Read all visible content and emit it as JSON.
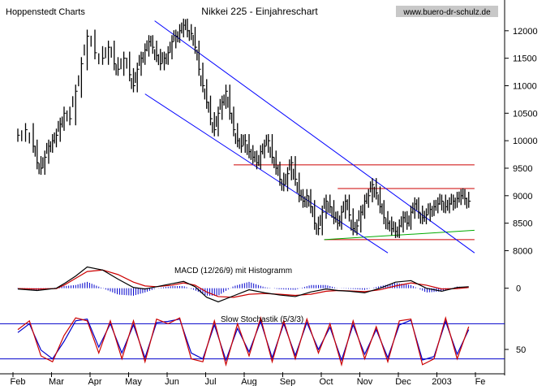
{
  "chart_data": {
    "type": "line",
    "title": "Nikkei 225 - Einjahreschart",
    "source_label": "Hoppenstedt Charts",
    "watermark": "www.buero-dr-schulz.de",
    "x_ticks": [
      "Feb",
      "Mar",
      "Apr",
      "May",
      "Jun",
      "Jul",
      "Aug",
      "Sep",
      "Oct",
      "Nov",
      "Dec",
      "2003",
      "Fe"
    ],
    "main_panel": {
      "ylim": [
        7800,
        12500
      ],
      "y_ticks": [
        8000,
        8500,
        9000,
        9500,
        10000,
        10500,
        11000,
        11500,
        12000
      ],
      "price_series": {
        "x": [
          0,
          0.2,
          0.4,
          0.5,
          0.6,
          0.7,
          0.8,
          0.9,
          1.0,
          1.1,
          1.2,
          1.35,
          1.5,
          1.65,
          1.8,
          2.0,
          2.2,
          2.35,
          2.5,
          2.6,
          2.75,
          2.9,
          3.0,
          3.1,
          3.2,
          3.3,
          3.4,
          3.5,
          3.6,
          3.7,
          3.8,
          3.9,
          4.0,
          4.1,
          4.2,
          4.3,
          4.4,
          4.5,
          4.6,
          4.7,
          4.8,
          4.9,
          5.0,
          5.1,
          5.2,
          5.3,
          5.4,
          5.5,
          5.6,
          5.7,
          5.8,
          5.9,
          6.0,
          6.1,
          6.2,
          6.3,
          6.4,
          6.5,
          6.6,
          6.7,
          6.8,
          6.9,
          7.0,
          7.1,
          7.2,
          7.3,
          7.4,
          7.5,
          7.6,
          7.7,
          7.8,
          7.9,
          8.0,
          8.1,
          8.2,
          8.3,
          8.4,
          8.5,
          8.6,
          8.7,
          8.8,
          8.9,
          9.0,
          9.1,
          9.2,
          9.3,
          9.4,
          9.5,
          9.6,
          9.7,
          9.8,
          9.9,
          10.0,
          10.1,
          10.2,
          10.3,
          10.4,
          10.5,
          10.6,
          10.7,
          10.8,
          10.9,
          11.0,
          11.1,
          11.2,
          11.3,
          11.4,
          11.5,
          11.6,
          11.7
        ],
        "y": [
          10100,
          10200,
          9900,
          9600,
          9500,
          9700,
          9900,
          10000,
          10100,
          10300,
          10500,
          10400,
          10900,
          11400,
          11900,
          11600,
          11500,
          11700,
          11400,
          11300,
          11500,
          11200,
          11000,
          11300,
          11500,
          11650,
          11800,
          11700,
          11550,
          11400,
          11500,
          11600,
          11800,
          11900,
          12000,
          12100,
          12000,
          11950,
          11700,
          11300,
          11000,
          10700,
          10400,
          10200,
          10500,
          10700,
          10900,
          10500,
          10200,
          10000,
          9900,
          10000,
          9800,
          9700,
          9600,
          9800,
          9900,
          10000,
          9700,
          9500,
          9300,
          9200,
          9400,
          9600,
          9300,
          9000,
          8900,
          9000,
          8800,
          8500,
          8400,
          8700,
          8900,
          8800,
          8600,
          8500,
          8700,
          8900,
          8650,
          8400,
          8450,
          8700,
          8900,
          9000,
          9200,
          9050,
          8800,
          8600,
          8500,
          8400,
          8350,
          8450,
          8600,
          8500,
          8700,
          8850,
          8700,
          8600,
          8650,
          8750,
          8800,
          8850,
          8900,
          8800,
          8850,
          8900,
          8950,
          9000,
          8950,
          8900
        ]
      },
      "trend_channel": {
        "upper": {
          "x": [
            3.55,
            11.85
          ],
          "y": [
            12180,
            7960
          ]
        },
        "lower": {
          "x": [
            3.3,
            9.6
          ],
          "y": [
            10850,
            7960
          ]
        }
      },
      "horizontal_lines": [
        {
          "y": 9560,
          "x": [
            5.6,
            11.85
          ],
          "color": "#cc0000"
        },
        {
          "y": 9130,
          "x": [
            8.3,
            11.85
          ],
          "color": "#cc0000"
        },
        {
          "y": 8200,
          "x": [
            7.95,
            11.85
          ],
          "color": "#cc0000"
        }
      ],
      "support_line": {
        "x": [
          7.95,
          11.85
        ],
        "y": [
          8200,
          8370
        ],
        "color": "#00aa00"
      }
    },
    "macd_panel": {
      "label": "MACD (12/26/9) mit Histogramm",
      "y_ticks": [
        0
      ],
      "ylim": [
        -250,
        350
      ],
      "x": [
        0,
        0.5,
        1.0,
        1.2,
        1.5,
        1.8,
        2.2,
        2.6,
        3.0,
        3.3,
        3.6,
        4.0,
        4.3,
        4.6,
        4.9,
        5.2,
        5.6,
        6.0,
        6.4,
        6.8,
        7.2,
        7.6,
        8.0,
        8.3,
        8.6,
        9.0,
        9.4,
        9.8,
        10.2,
        10.6,
        11.0,
        11.4,
        11.7
      ],
      "macd": [
        -10,
        -30,
        0,
        60,
        160,
        280,
        240,
        120,
        10,
        -10,
        20,
        60,
        90,
        20,
        -120,
        -180,
        -100,
        -20,
        -60,
        -90,
        -110,
        -50,
        -10,
        -30,
        -40,
        -60,
        0,
        80,
        100,
        0,
        -40,
        10,
        20
      ],
      "signal": [
        -5,
        -10,
        -5,
        40,
        130,
        220,
        240,
        180,
        80,
        30,
        20,
        40,
        70,
        40,
        -50,
        -110,
        -120,
        -80,
        -70,
        -80,
        -95,
        -80,
        -40,
        -30,
        -35,
        -45,
        -20,
        30,
        70,
        40,
        -10,
        -5,
        10
      ],
      "histogram_colors": {
        "positive": "#0000cc",
        "negative": "#0000cc"
      }
    },
    "stoch_panel": {
      "label": "Slow Stochastik (5/3/3)",
      "y_ticks": [
        50
      ],
      "ylim": [
        0,
        100
      ],
      "ref_lines": [
        80,
        20
      ],
      "x": [
        0,
        0.3,
        0.6,
        0.9,
        1.2,
        1.5,
        1.8,
        2.1,
        2.4,
        2.7,
        3.0,
        3.3,
        3.6,
        3.9,
        4.2,
        4.5,
        4.8,
        5.1,
        5.4,
        5.7,
        6.0,
        6.3,
        6.6,
        6.9,
        7.2,
        7.5,
        7.8,
        8.1,
        8.4,
        8.7,
        9.0,
        9.3,
        9.6,
        9.9,
        10.2,
        10.5,
        10.8,
        11.1,
        11.4,
        11.7
      ],
      "k": [
        70,
        85,
        25,
        15,
        60,
        90,
        85,
        30,
        85,
        20,
        85,
        15,
        88,
        80,
        90,
        20,
        15,
        85,
        10,
        80,
        25,
        90,
        15,
        85,
        20,
        88,
        30,
        80,
        10,
        85,
        20,
        75,
        15,
        85,
        88,
        10,
        20,
        90,
        20,
        75
      ],
      "d": [
        65,
        80,
        35,
        20,
        50,
        85,
        88,
        40,
        80,
        30,
        78,
        22,
        82,
        84,
        88,
        30,
        20,
        78,
        18,
        72,
        32,
        84,
        22,
        80,
        26,
        82,
        36,
        74,
        18,
        78,
        28,
        70,
        22,
        78,
        86,
        18,
        24,
        84,
        28,
        70
      ]
    },
    "colors": {
      "price": "#000000",
      "channel": "#0000ff",
      "resistance": "#cc0000",
      "support": "#00aa00",
      "macd": "#000000",
      "signal": "#cc0000",
      "stoch_k": "#cc0000",
      "stoch_d": "#0000cc",
      "ref_line": "#0000cc"
    }
  }
}
